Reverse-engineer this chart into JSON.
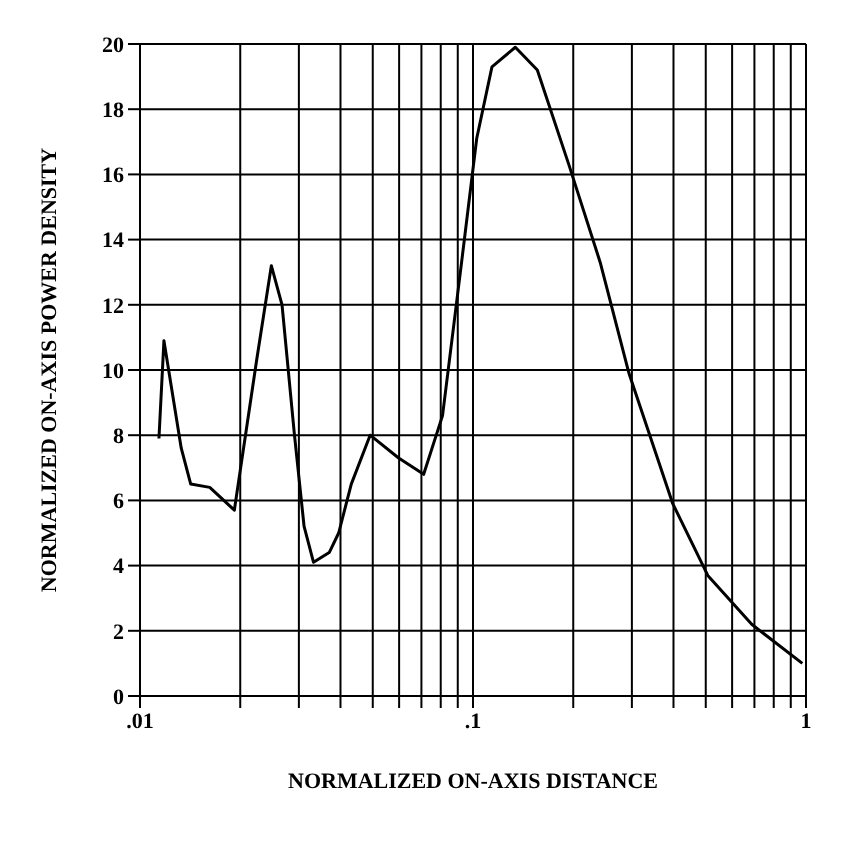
{
  "chart_data": {
    "type": "line",
    "xlabel": "NORMALIZED ON-AXIS DISTANCE",
    "ylabel": "NORMALIZED ON-AXIS POWER DENSITY",
    "log": "x",
    "x": [
      0.0114,
      0.0118,
      0.0133,
      0.0142,
      0.0162,
      0.0192,
      0.0224,
      0.0248,
      0.0267,
      0.0291,
      0.0311,
      0.0332,
      0.037,
      0.0395,
      0.0431,
      0.0491,
      0.0598,
      0.0711,
      0.081,
      0.0924,
      0.1026,
      0.114,
      0.134,
      0.156,
      0.194,
      0.241,
      0.294,
      0.398,
      0.507,
      0.687,
      0.975
    ],
    "series": [
      {
        "color": "#000000",
        "values": [
          7.9,
          10.9,
          7.6,
          6.5,
          6.4,
          5.7,
          10.3,
          13.2,
          12.0,
          8.0,
          5.2,
          4.1,
          4.4,
          5.0,
          6.5,
          8.0,
          7.3,
          6.8,
          8.6,
          13.3,
          17.1,
          19.3,
          19.9,
          19.2,
          16.3,
          13.3,
          9.9,
          5.9,
          3.7,
          2.2,
          1.0
        ]
      }
    ],
    "xlim": [
      0.01,
      1
    ],
    "xticks": [
      {
        "value": 0.01,
        "label": ".01"
      },
      {
        "value": 0.02,
        "label": null
      },
      {
        "value": 0.03,
        "label": null
      },
      {
        "value": 0.04,
        "label": null
      },
      {
        "value": 0.05,
        "label": null
      },
      {
        "value": 0.06,
        "label": null
      },
      {
        "value": 0.07,
        "label": null
      },
      {
        "value": 0.08,
        "label": null
      },
      {
        "value": 0.09,
        "label": null
      },
      {
        "value": 0.1,
        "label": ".1"
      },
      {
        "value": 0.2,
        "label": null
      },
      {
        "value": 0.3,
        "label": null
      },
      {
        "value": 0.4,
        "label": null
      },
      {
        "value": 0.5,
        "label": null
      },
      {
        "value": 0.6,
        "label": null
      },
      {
        "value": 0.7,
        "label": null
      },
      {
        "value": 0.8,
        "label": null
      },
      {
        "value": 0.9,
        "label": null
      },
      {
        "value": 1,
        "label": "1"
      }
    ],
    "ylim": [
      0,
      20
    ],
    "yticks": [
      0,
      2,
      4,
      6,
      8,
      10,
      12,
      14,
      16,
      18,
      20
    ],
    "grid": true,
    "marker": "none",
    "line_style": "solid"
  }
}
